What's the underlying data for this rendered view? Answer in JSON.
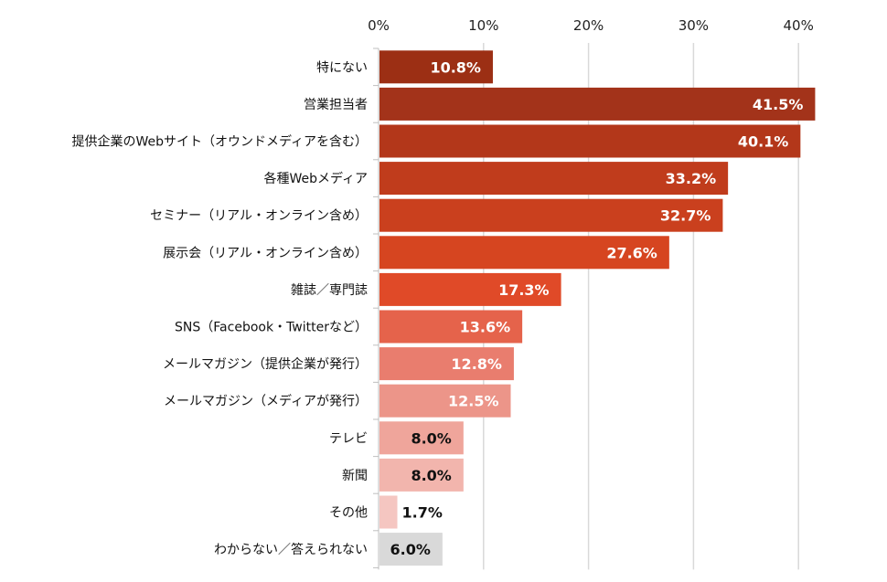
{
  "chart_data": {
    "type": "bar",
    "orientation": "horizontal",
    "title": "",
    "xlabel": "",
    "ylabel": "",
    "xlim": [
      0,
      42
    ],
    "x_ticks": [
      "0%",
      "10%",
      "20%",
      "30%",
      "40%"
    ],
    "x_tick_values": [
      0,
      10,
      20,
      30,
      40
    ],
    "x_axis_position": "top",
    "grid": true,
    "categories": [
      "特にない",
      "営業担当者",
      "提供企業のWebサイト（オウンドメディアを含む）",
      "各種Webメディア",
      "セミナー（リアル・オンライン含め）",
      "展示会（リアル・オンライン含め）",
      "雑誌／専門誌",
      "SNS（Facebook・Twitterなど）",
      "メールマガジン（提供企業が発行）",
      "メールマガジン（メディアが発行）",
      "テレビ",
      "新聞",
      "その他",
      "わからない／答えられない"
    ],
    "values": [
      10.8,
      41.5,
      40.1,
      33.2,
      32.7,
      27.6,
      17.3,
      13.6,
      12.8,
      12.5,
      8.0,
      8.0,
      1.7,
      6.0
    ],
    "data_labels": [
      "10.8%",
      "41.5%",
      "40.1%",
      "33.2%",
      "32.7%",
      "27.6%",
      "17.3%",
      "13.6%",
      "12.8%",
      "12.5%",
      "8.0%",
      "8.0%",
      "1.7%",
      "6.0%"
    ],
    "colors": [
      "#9c2f14",
      "#a3331a",
      "#b3371a",
      "#c03c1c",
      "#ca401e",
      "#d64520",
      "#e04a28",
      "#e5634b",
      "#e97d6e",
      "#ec9589",
      "#efa59b",
      "#f2b5ad",
      "#f5c6c1",
      "#d9d9d9"
    ],
    "label_colors": [
      "#ffffff",
      "#ffffff",
      "#ffffff",
      "#ffffff",
      "#ffffff",
      "#ffffff",
      "#ffffff",
      "#ffffff",
      "#ffffff",
      "#ffffff",
      "#111111",
      "#111111",
      "#111111",
      "#111111"
    ]
  }
}
